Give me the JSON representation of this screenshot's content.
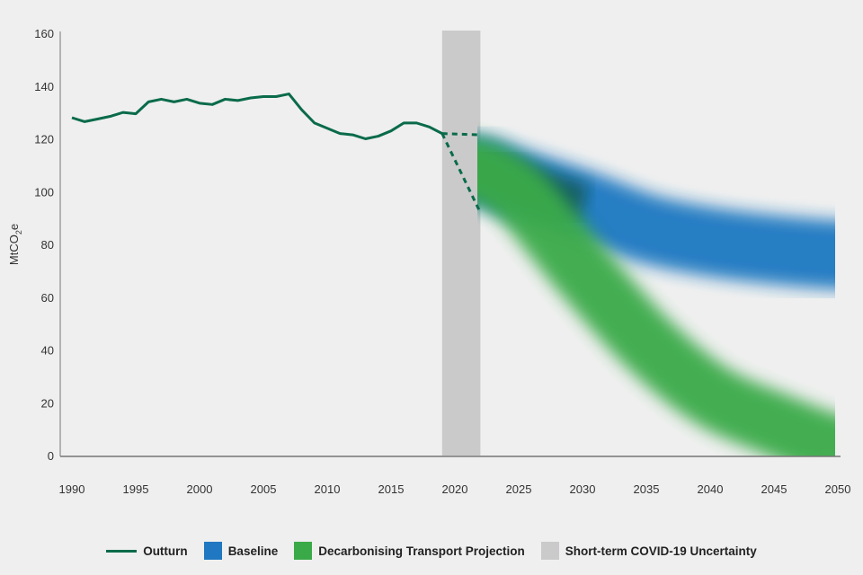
{
  "chart_data": {
    "type": "line",
    "title": "",
    "xlabel": "",
    "ylabel": "MtCO2e",
    "ylabel_parts": {
      "main": "MtCO",
      "sub": "2",
      "tail": "e"
    },
    "xlim": [
      1990,
      2050
    ],
    "ylim": [
      0,
      160
    ],
    "xticks": [
      1990,
      1995,
      2000,
      2005,
      2010,
      2015,
      2020,
      2025,
      2030,
      2035,
      2040,
      2045,
      2050
    ],
    "yticks": [
      0,
      20,
      40,
      60,
      80,
      100,
      120,
      140,
      160
    ],
    "grid": false,
    "legend_position": "bottom",
    "colors": {
      "outturn": "#0a6b4a",
      "baseline": "#1f78c1",
      "decarbonising": "#3aaa48",
      "covid": "#cbcacb"
    },
    "series": [
      {
        "name": "Outturn",
        "type": "line",
        "x": [
          1990,
          1991,
          1992,
          1993,
          1994,
          1995,
          1996,
          1997,
          1998,
          1999,
          2000,
          2001,
          2002,
          2003,
          2004,
          2005,
          2006,
          2007,
          2008,
          2009,
          2010,
          2011,
          2012,
          2013,
          2014,
          2015,
          2016,
          2017,
          2018,
          2019
        ],
        "y": [
          128,
          126.5,
          127.5,
          128.5,
          130,
          129.5,
          134,
          135,
          134,
          135,
          133.5,
          133,
          135,
          134.5,
          135.5,
          136,
          136,
          137,
          131,
          126,
          124,
          122,
          121.5,
          120,
          121,
          123,
          126,
          126,
          124.5,
          122
        ]
      },
      {
        "name": "Outturn (COVID range upper)",
        "type": "dashed",
        "x": [
          2019,
          2022
        ],
        "y": [
          122,
          121.5
        ]
      },
      {
        "name": "Outturn (COVID range lower)",
        "type": "dashed",
        "x": [
          2019,
          2022
        ],
        "y": [
          122,
          92
        ]
      },
      {
        "name": "Baseline",
        "type": "band",
        "x": [
          2022,
          2025,
          2030,
          2035,
          2040,
          2045,
          2050
        ],
        "y": [
          108,
          103,
          95,
          86,
          81,
          78,
          76
        ],
        "spread": 13
      },
      {
        "name": "Decarbonising Transport Projection",
        "type": "band",
        "x": [
          2022,
          2025,
          2028,
          2030,
          2035,
          2040,
          2045,
          2050
        ],
        "y": [
          108,
          99,
          82,
          70,
          43,
          23,
          12,
          3
        ],
        "spread": 12
      },
      {
        "name": "Short-term COVID-19 Uncertainty",
        "type": "span",
        "x": [
          2019,
          2022
        ]
      }
    ],
    "legend": [
      "Outturn",
      "Baseline",
      "Decarbonising Transport Projection",
      "Short-term COVID-19 Uncertainty"
    ]
  }
}
